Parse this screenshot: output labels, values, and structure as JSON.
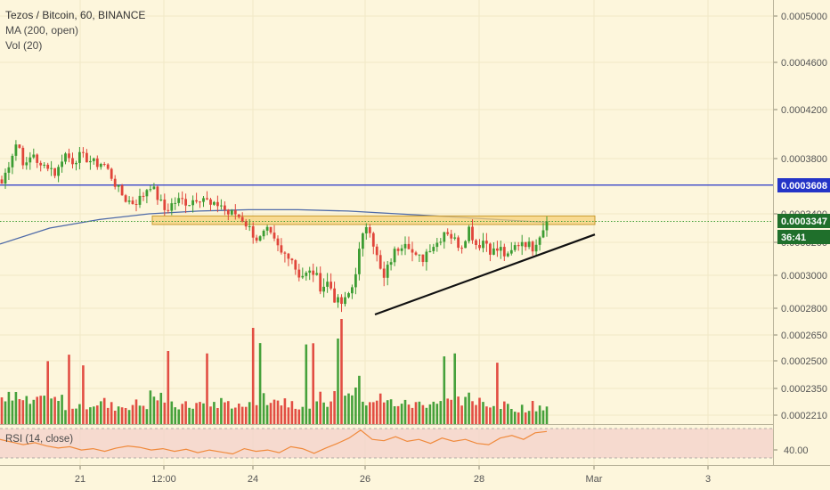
{
  "header": {
    "title": "Tezos / Bitcoin, 60, BINANCE",
    "indicators": [
      "MA (200, open)",
      "Vol (20)"
    ]
  },
  "rsi": {
    "label": "RSI (14, close)",
    "tick_label": "40.00",
    "band_upper": 70,
    "band_lower": 30
  },
  "price_scale": {
    "ticks": [
      "0.0005000",
      "0.0004600",
      "0.0004200",
      "0.0003800",
      "0.0003400",
      "0.0003200",
      "0.0003000",
      "0.0002800",
      "0.0002650",
      "0.0002500",
      "0.0002350",
      "0.0002210"
    ]
  },
  "price_badges": [
    {
      "label": "0.0003608",
      "color": "#2434c7",
      "value": 0.0003608
    },
    {
      "label": "0.0003347",
      "color": "#1f6f2b",
      "value": 0.0003347
    },
    {
      "label": "36:41",
      "color": "#1f6f2b"
    }
  ],
  "time_scale": {
    "ticks": [
      "21",
      "12:00",
      "24",
      "26",
      "28",
      "Mar",
      "3"
    ]
  },
  "colors": {
    "background": "#fdf6dc",
    "up": "#3c9c32",
    "down": "#e0453a",
    "ma": "#4e6aa8",
    "horizontal_line": "#2434c7",
    "resistance_box": "#f5d07a",
    "trendline": "#111111",
    "rsi_line": "#f08a3c",
    "rsi_band": "#f4d3cc"
  },
  "chart_data": {
    "type": "candlestick",
    "title": "Tezos / Bitcoin, 60, BINANCE",
    "timeframe": "60",
    "exchange": "BINANCE",
    "x_ticks": [
      "21",
      "12:00",
      "24",
      "26",
      "28",
      "Mar",
      "3"
    ],
    "y_ticks": [
      0.0005,
      0.00046,
      0.00042,
      0.00038,
      0.00034,
      0.00032,
      0.0003,
      0.00028,
      0.000265,
      0.00025,
      0.000235,
      0.000221
    ],
    "last_price": 0.0003347,
    "countdown": "36:41",
    "horizontal_line": 0.0003608,
    "resistance_zone": [
      0.0003325,
      0.0003385
    ],
    "trendline": {
      "start_price": 0.0002765,
      "end_price": 0.0003255
    },
    "price_path": [
      0.000362,
      0.000378,
      0.000395,
      0.000372,
      0.000385,
      0.000373,
      0.000376,
      0.000368,
      0.000385,
      0.000378,
      0.000382,
      0.00038,
      0.000376,
      0.000377,
      0.000368,
      0.000357,
      0.00035,
      0.000348,
      0.000352,
      0.000362,
      0.000352,
      0.000342,
      0.000348,
      0.00035,
      0.000348,
      0.000352,
      0.000352,
      0.000344,
      0.000348,
      0.00034,
      0.00034,
      0.000336,
      0.000328,
      0.000321,
      0.000328,
      0.00032,
      0.000312,
      0.000314,
      0.000301,
      0.0003,
      0.000302,
      0.000293,
      0.000296,
      0.000283,
      0.000283,
      0.000293,
      0.000316,
      0.000336,
      0.000314,
      0.000296,
      0.00031,
      0.000318,
      0.000323,
      0.00031,
      0.00031,
      0.000318,
      0.00032,
      0.00033,
      0.000322,
      0.000318,
      0.00033,
      0.000318,
      0.000322,
      0.000314,
      0.000316,
      0.00031,
      0.000318,
      0.000322,
      0.000316,
      0.000325,
      0.000334
    ],
    "ma_200": [
      0.000319,
      0.00033,
      0.000336,
      0.00034,
      0.000342,
      0.000343,
      0.000343,
      0.000342,
      0.00034,
      0.000338,
      0.000336,
      0.000334
    ],
    "volume_profile": [
      0.5,
      0.4,
      0.45,
      0.35,
      0.4,
      0.3,
      0.35,
      0.55,
      0.3,
      0.35,
      0.4,
      0.3,
      0.6,
      0.45,
      0.35,
      0.5,
      0.8,
      0.5,
      0.4,
      0.35,
      0.45,
      0.4,
      0.5,
      0.3,
      0.25,
      0.3
    ],
    "rsi_14": [
      58,
      54,
      50,
      53,
      48,
      45,
      47,
      42,
      44,
      40,
      45,
      48,
      46,
      42,
      44,
      40,
      43,
      38,
      42,
      39,
      36,
      44,
      40,
      42,
      38,
      47,
      44,
      37,
      45,
      52,
      60,
      72,
      58,
      56,
      62,
      55,
      58,
      52,
      60,
      55,
      58,
      52,
      50,
      60,
      64,
      58,
      68,
      70
    ]
  }
}
